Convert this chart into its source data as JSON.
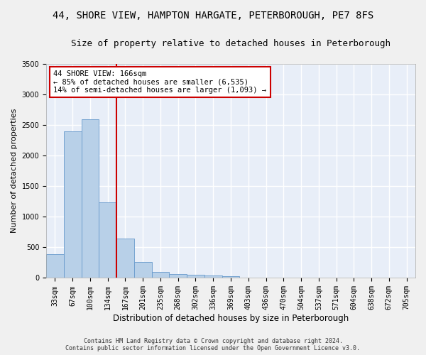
{
  "title_line1": "44, SHORE VIEW, HAMPTON HARGATE, PETERBOROUGH, PE7 8FS",
  "title_line2": "Size of property relative to detached houses in Peterborough",
  "xlabel": "Distribution of detached houses by size in Peterborough",
  "ylabel": "Number of detached properties",
  "footnote": "Contains HM Land Registry data © Crown copyright and database right 2024.\nContains public sector information licensed under the Open Government Licence v3.0.",
  "bar_labels": [
    "33sqm",
    "67sqm",
    "100sqm",
    "134sqm",
    "167sqm",
    "201sqm",
    "235sqm",
    "268sqm",
    "302sqm",
    "336sqm",
    "369sqm",
    "403sqm",
    "436sqm",
    "470sqm",
    "504sqm",
    "537sqm",
    "571sqm",
    "604sqm",
    "638sqm",
    "672sqm",
    "705sqm"
  ],
  "bar_values": [
    390,
    2400,
    2600,
    1240,
    640,
    260,
    100,
    60,
    55,
    45,
    30,
    0,
    0,
    0,
    0,
    0,
    0,
    0,
    0,
    0,
    0
  ],
  "bar_color": "#b8d0e8",
  "bar_edge_color": "#6699cc",
  "vline_color": "#cc0000",
  "vline_x_index": 3.5,
  "annotation_line1": "44 SHORE VIEW: 166sqm",
  "annotation_line2": "← 85% of detached houses are smaller (6,535)",
  "annotation_line3": "14% of semi-detached houses are larger (1,093) →",
  "ylim": [
    0,
    3500
  ],
  "yticks": [
    0,
    500,
    1000,
    1500,
    2000,
    2500,
    3000,
    3500
  ],
  "plot_bg_color": "#e8eef8",
  "fig_bg_color": "#f0f0f0",
  "grid_color": "#ffffff",
  "title1_fontsize": 10,
  "title2_fontsize": 9,
  "xlabel_fontsize": 8.5,
  "ylabel_fontsize": 8,
  "tick_fontsize": 7,
  "annot_fontsize": 7.5,
  "footnote_fontsize": 6
}
